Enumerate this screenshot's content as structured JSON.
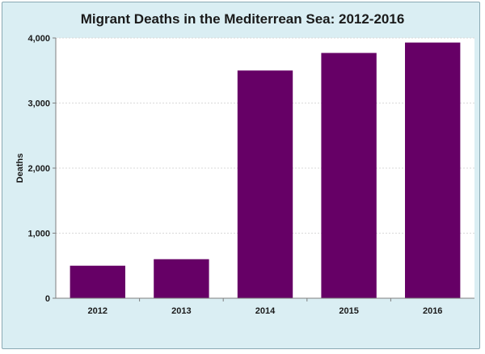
{
  "chart_data": {
    "type": "bar",
    "title": "Migrant Deaths in the Mediterrean Sea: 2012-2016",
    "xlabel": "",
    "ylabel": "Deaths",
    "categories": [
      "2012",
      "2013",
      "2014",
      "2015",
      "2016"
    ],
    "values": [
      500,
      600,
      3500,
      3770,
      3930
    ],
    "ylim": [
      0,
      4000
    ],
    "yticks": [
      0,
      1000,
      2000,
      3000,
      4000
    ],
    "ytick_labels": [
      "0",
      "1,000",
      "2,000",
      "3,000",
      "4,000"
    ],
    "grid": true,
    "legend": "none",
    "colors": {
      "bar": "#660066",
      "frame": "#daeef3",
      "plot": "#ffffff",
      "grid": "#d9d9d9"
    }
  }
}
